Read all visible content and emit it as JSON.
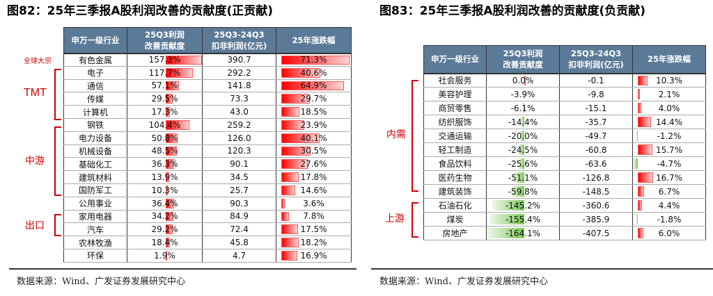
{
  "left": {
    "title": "图82：25年三季报A股利润改善的贡献度(正贡献)",
    "headers": [
      "申万一级行业",
      "25Q3利润\n改善贡献度",
      "25Q3-24Q3\n扣非利润(亿元)",
      "25年涨跌幅"
    ],
    "rows": [
      {
        "name": "有色金属",
        "contrib": 157.3,
        "profit": "390.7",
        "chg": 71.3
      },
      {
        "name": "电子",
        "contrib": 117.7,
        "profit": "292.2",
        "chg": 40.6
      },
      {
        "name": "通信",
        "contrib": 57.1,
        "profit": "141.8",
        "chg": 64.9
      },
      {
        "name": "传媒",
        "contrib": 29.5,
        "profit": "73.3",
        "chg": 29.7
      },
      {
        "name": "计算机",
        "contrib": 17.3,
        "profit": "43.0",
        "chg": 18.5
      },
      {
        "name": "钢铁",
        "contrib": 104.4,
        "profit": "259.2",
        "chg": 23.9
      },
      {
        "name": "电力设备",
        "contrib": 50.8,
        "profit": "126.0",
        "chg": 40.1
      },
      {
        "name": "机械设备",
        "contrib": 48.5,
        "profit": "120.3",
        "chg": 30.5
      },
      {
        "name": "基础化工",
        "contrib": 36.3,
        "profit": "90.1",
        "chg": 27.6
      },
      {
        "name": "建筑材料",
        "contrib": 13.9,
        "profit": "34.5",
        "chg": 17.8
      },
      {
        "name": "国防军工",
        "contrib": 10.3,
        "profit": "25.7",
        "chg": 14.6
      },
      {
        "name": "公用事业",
        "contrib": 36.4,
        "profit": "90.3",
        "chg": 3.6
      },
      {
        "name": "家用电器",
        "contrib": 34.2,
        "profit": "84.9",
        "chg": 7.8
      },
      {
        "name": "汽车",
        "contrib": 29.2,
        "profit": "72.4",
        "chg": 17.5
      },
      {
        "name": "农林牧渔",
        "contrib": 18.4,
        "profit": "45.8",
        "chg": 18.2
      },
      {
        "name": "环保",
        "contrib": 1.9,
        "profit": "4.7",
        "chg": 16.9
      }
    ],
    "groups": [
      "全球大宗",
      "TMT",
      "中游",
      "出口"
    ],
    "source": "数据来源：Wind、广发证券发展研究中心"
  },
  "right": {
    "title": "图83：25年三季报A股利润改善的贡献度(负贡献)",
    "headers": [
      "申万一级行业",
      "25Q3利润\n改善贡献度",
      "25Q3-24Q3\n扣非利润(亿元)",
      "25年涨跌幅"
    ],
    "rows": [
      {
        "name": "社会服务",
        "contrib": 0.0,
        "profit": "-0.1",
        "chg": 10.3
      },
      {
        "name": "美容护理",
        "contrib": -3.9,
        "profit": "-9.8",
        "chg": 2.1
      },
      {
        "name": "商贸零售",
        "contrib": -6.1,
        "profit": "-15.1",
        "chg": 4.0
      },
      {
        "name": "纺织服饰",
        "contrib": -14.4,
        "profit": "-35.7",
        "chg": 14.4
      },
      {
        "name": "交通运输",
        "contrib": -20.0,
        "profit": "-49.7",
        "chg": -1.2
      },
      {
        "name": "轻工制造",
        "contrib": -24.5,
        "profit": "-60.8",
        "chg": 15.7
      },
      {
        "name": "食品饮料",
        "contrib": -25.6,
        "profit": "-63.6",
        "chg": -4.7
      },
      {
        "name": "医药生物",
        "contrib": -51.1,
        "profit": "-126.8",
        "chg": 16.7
      },
      {
        "name": "建筑装饰",
        "contrib": -59.8,
        "profit": "-148.5",
        "chg": 6.7
      },
      {
        "name": "石油石化",
        "contrib": -145.2,
        "profit": "-360.6",
        "chg": 4.4
      },
      {
        "name": "煤炭",
        "contrib": -155.4,
        "profit": "-385.9",
        "chg": -1.8
      },
      {
        "name": "房地产",
        "contrib": -164.1,
        "profit": "-407.5",
        "chg": 6.0
      }
    ],
    "groups": [
      "内需",
      "上游"
    ],
    "source": "数据来源：Wind、广发证券发展研究中心"
  }
}
